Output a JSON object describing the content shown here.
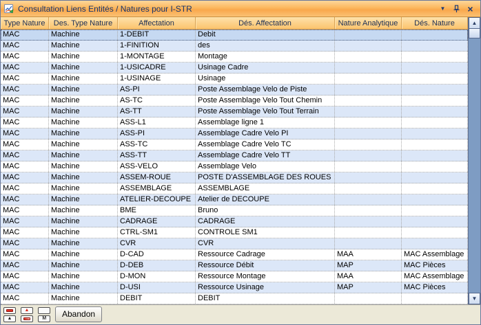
{
  "window": {
    "title": "Consultation Liens Entités / Natures pour I-STR",
    "titlebar_buttons": [
      {
        "name": "window-menu",
        "glyph": "▼"
      },
      {
        "name": "auto-hide-pin",
        "glyph": ""
      },
      {
        "name": "close",
        "glyph": "×"
      }
    ]
  },
  "table": {
    "columns": [
      "Type Nature",
      "Des. Type Nature",
      "Affectation",
      "Dés. Affectation",
      "Nature Analytique",
      "Dés. Nature"
    ],
    "selected_row_index": 0,
    "rows": [
      {
        "type_nature": "MAC",
        "des_type_nature": "Machine",
        "affectation": "1-DEBIT",
        "des_affectation": "Debit",
        "nature_analytique": "",
        "des_nature": ""
      },
      {
        "type_nature": "MAC",
        "des_type_nature": "Machine",
        "affectation": "1-FINITION",
        "des_affectation": "des",
        "nature_analytique": "",
        "des_nature": ""
      },
      {
        "type_nature": "MAC",
        "des_type_nature": "Machine",
        "affectation": "1-MONTAGE",
        "des_affectation": "Montage",
        "nature_analytique": "",
        "des_nature": ""
      },
      {
        "type_nature": "MAC",
        "des_type_nature": "Machine",
        "affectation": "1-USICADRE",
        "des_affectation": "Usinage Cadre",
        "nature_analytique": "",
        "des_nature": ""
      },
      {
        "type_nature": "MAC",
        "des_type_nature": "Machine",
        "affectation": "1-USINAGE",
        "des_affectation": "Usinage",
        "nature_analytique": "",
        "des_nature": ""
      },
      {
        "type_nature": "MAC",
        "des_type_nature": "Machine",
        "affectation": "AS-PI",
        "des_affectation": "Poste Assemblage Velo de Piste",
        "nature_analytique": "",
        "des_nature": ""
      },
      {
        "type_nature": "MAC",
        "des_type_nature": "Machine",
        "affectation": "AS-TC",
        "des_affectation": "Poste Assemblage Velo Tout Chemin",
        "nature_analytique": "",
        "des_nature": ""
      },
      {
        "type_nature": "MAC",
        "des_type_nature": "Machine",
        "affectation": "AS-TT",
        "des_affectation": "Poste Assemblage Velo Tout Terrain",
        "nature_analytique": "",
        "des_nature": ""
      },
      {
        "type_nature": "MAC",
        "des_type_nature": "Machine",
        "affectation": "ASS-L1",
        "des_affectation": "Assemblage ligne 1",
        "nature_analytique": "",
        "des_nature": ""
      },
      {
        "type_nature": "MAC",
        "des_type_nature": "Machine",
        "affectation": "ASS-PI",
        "des_affectation": "Assemblage Cadre Velo PI",
        "nature_analytique": "",
        "des_nature": ""
      },
      {
        "type_nature": "MAC",
        "des_type_nature": "Machine",
        "affectation": "ASS-TC",
        "des_affectation": "Assemblage Cadre Velo TC",
        "nature_analytique": "",
        "des_nature": ""
      },
      {
        "type_nature": "MAC",
        "des_type_nature": "Machine",
        "affectation": "ASS-TT",
        "des_affectation": "Assemblage Cadre Velo TT",
        "nature_analytique": "",
        "des_nature": ""
      },
      {
        "type_nature": "MAC",
        "des_type_nature": "Machine",
        "affectation": "ASS-VELO",
        "des_affectation": "Assemblage Velo",
        "nature_analytique": "",
        "des_nature": ""
      },
      {
        "type_nature": "MAC",
        "des_type_nature": "Machine",
        "affectation": "ASSEM-ROUE",
        "des_affectation": "POSTE D'ASSEMBLAGE DES ROUES",
        "nature_analytique": "",
        "des_nature": ""
      },
      {
        "type_nature": "MAC",
        "des_type_nature": "Machine",
        "affectation": "ASSEMBLAGE",
        "des_affectation": "ASSEMBLAGE",
        "nature_analytique": "",
        "des_nature": ""
      },
      {
        "type_nature": "MAC",
        "des_type_nature": "Machine",
        "affectation": "ATELIER-DECOUPE",
        "des_affectation": "Atelier de DECOUPE",
        "nature_analytique": "",
        "des_nature": ""
      },
      {
        "type_nature": "MAC",
        "des_type_nature": "Machine",
        "affectation": "BME",
        "des_affectation": "Bruno",
        "nature_analytique": "",
        "des_nature": ""
      },
      {
        "type_nature": "MAC",
        "des_type_nature": "Machine",
        "affectation": "CADRAGE",
        "des_affectation": "CADRAGE",
        "nature_analytique": "",
        "des_nature": ""
      },
      {
        "type_nature": "MAC",
        "des_type_nature": "Machine",
        "affectation": "CTRL-SM1",
        "des_affectation": "CONTROLE SM1",
        "nature_analytique": "",
        "des_nature": ""
      },
      {
        "type_nature": "MAC",
        "des_type_nature": "Machine",
        "affectation": "CVR",
        "des_affectation": "CVR",
        "nature_analytique": "",
        "des_nature": ""
      },
      {
        "type_nature": "MAC",
        "des_type_nature": "Machine",
        "affectation": "D-CAD",
        "des_affectation": "Ressource Cadrage",
        "nature_analytique": "MAA",
        "des_nature": "MAC Assemblage"
      },
      {
        "type_nature": "MAC",
        "des_type_nature": "Machine",
        "affectation": "D-DEB",
        "des_affectation": "Ressource Débit",
        "nature_analytique": "MAP",
        "des_nature": "MAC Pièces"
      },
      {
        "type_nature": "MAC",
        "des_type_nature": "Machine",
        "affectation": "D-MON",
        "des_affectation": "Ressource Montage",
        "nature_analytique": "MAA",
        "des_nature": "MAC Assemblage"
      },
      {
        "type_nature": "MAC",
        "des_type_nature": "Machine",
        "affectation": "D-USI",
        "des_affectation": "Ressource Usinage",
        "nature_analytique": "MAP",
        "des_nature": "MAC Pièces"
      },
      {
        "type_nature": "MAC",
        "des_type_nature": "Machine",
        "affectation": "DEBIT",
        "des_affectation": "DEBIT",
        "nature_analytique": "",
        "des_nature": ""
      }
    ]
  },
  "scrollbar": {
    "up_glyph": "▲",
    "down_glyph": "▼"
  },
  "footer": {
    "abandon_label": "Abandon",
    "nav_buttons": [
      {
        "icon": "red-bar"
      },
      {
        "icon": "red-triangle-up",
        "glyph": "▲"
      },
      {
        "icon": "blank"
      },
      {
        "icon": "black-triangle-up",
        "glyph": "▲"
      },
      {
        "icon": "red-gradient-bar"
      },
      {
        "icon": "m-glyph",
        "glyph": "M"
      }
    ]
  },
  "colors": {
    "titlebar_top": "#fdd69a",
    "titlebar_bottom": "#fbc173",
    "header_top": "#fee2ab",
    "header_bottom": "#fbc36d",
    "row_alt": "#dce7f8",
    "row_selected": "#c6d9f2",
    "scrollbar_track": "#7e9cc3",
    "footer_bg": "#ece9d8",
    "title_text": "#16356e"
  }
}
